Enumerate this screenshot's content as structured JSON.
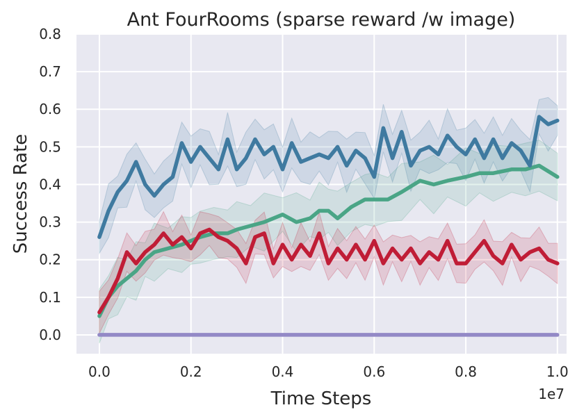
{
  "chart_data": {
    "type": "line",
    "title": "Ant FourRooms (sparse reward /w image)",
    "xlabel": "Time Steps",
    "ylabel": "Success Rate",
    "x_offset_label": "1e7",
    "xlim": [
      -0.05,
      1.02
    ],
    "ylim": [
      -0.05,
      0.8
    ],
    "xticks": [
      0.0,
      0.2,
      0.4,
      0.6,
      0.8,
      1.0
    ],
    "xtick_labels": [
      "0.0",
      "0.2",
      "0.4",
      "0.6",
      "0.8",
      "1.0"
    ],
    "yticks": [
      0.0,
      0.1,
      0.2,
      0.3,
      0.4,
      0.5,
      0.6,
      0.7,
      0.8
    ],
    "ytick_labels": [
      "0.0",
      "0.1",
      "0.2",
      "0.3",
      "0.4",
      "0.5",
      "0.6",
      "0.7",
      "0.8"
    ],
    "grid": true,
    "background_color": "#e8e8f1",
    "series": [
      {
        "color": "#9389c6",
        "x": [
          0.0,
          1.0
        ],
        "y": [
          0.0,
          0.0
        ],
        "band": 0.0
      },
      {
        "color": "#4aa586",
        "x": [
          0.0,
          0.02,
          0.04,
          0.06,
          0.08,
          0.1,
          0.12,
          0.15,
          0.18,
          0.2,
          0.22,
          0.25,
          0.28,
          0.3,
          0.33,
          0.36,
          0.4,
          0.43,
          0.46,
          0.48,
          0.5,
          0.52,
          0.55,
          0.58,
          0.6,
          0.63,
          0.66,
          0.7,
          0.73,
          0.76,
          0.8,
          0.83,
          0.86,
          0.9,
          0.93,
          0.96,
          1.0
        ],
        "y": [
          0.05,
          0.1,
          0.13,
          0.15,
          0.17,
          0.2,
          0.22,
          0.23,
          0.24,
          0.25,
          0.26,
          0.27,
          0.27,
          0.28,
          0.29,
          0.3,
          0.32,
          0.3,
          0.31,
          0.33,
          0.33,
          0.31,
          0.34,
          0.36,
          0.36,
          0.36,
          0.38,
          0.41,
          0.4,
          0.41,
          0.42,
          0.43,
          0.43,
          0.44,
          0.44,
          0.45,
          0.42
        ],
        "band": 0.06
      },
      {
        "color": "#c01d36",
        "x": [
          0.0,
          0.02,
          0.04,
          0.06,
          0.08,
          0.1,
          0.12,
          0.14,
          0.16,
          0.18,
          0.2,
          0.22,
          0.24,
          0.26,
          0.28,
          0.3,
          0.32,
          0.34,
          0.36,
          0.38,
          0.4,
          0.42,
          0.44,
          0.46,
          0.48,
          0.5,
          0.52,
          0.54,
          0.56,
          0.58,
          0.6,
          0.62,
          0.64,
          0.66,
          0.68,
          0.7,
          0.72,
          0.74,
          0.76,
          0.78,
          0.8,
          0.82,
          0.84,
          0.86,
          0.88,
          0.9,
          0.92,
          0.94,
          0.96,
          0.98,
          1.0
        ],
        "y": [
          0.06,
          0.1,
          0.15,
          0.22,
          0.19,
          0.22,
          0.24,
          0.27,
          0.24,
          0.26,
          0.23,
          0.27,
          0.28,
          0.26,
          0.25,
          0.23,
          0.19,
          0.26,
          0.27,
          0.19,
          0.24,
          0.2,
          0.24,
          0.21,
          0.27,
          0.19,
          0.23,
          0.2,
          0.24,
          0.2,
          0.25,
          0.19,
          0.23,
          0.2,
          0.23,
          0.19,
          0.22,
          0.2,
          0.25,
          0.19,
          0.19,
          0.22,
          0.25,
          0.21,
          0.19,
          0.24,
          0.2,
          0.22,
          0.23,
          0.2,
          0.19
        ],
        "band": 0.045
      },
      {
        "color": "#3f7aa0",
        "x": [
          0.0,
          0.02,
          0.04,
          0.06,
          0.08,
          0.1,
          0.12,
          0.14,
          0.16,
          0.18,
          0.2,
          0.22,
          0.24,
          0.26,
          0.28,
          0.3,
          0.32,
          0.34,
          0.36,
          0.38,
          0.4,
          0.42,
          0.44,
          0.46,
          0.48,
          0.5,
          0.52,
          0.54,
          0.56,
          0.58,
          0.6,
          0.62,
          0.64,
          0.66,
          0.68,
          0.7,
          0.72,
          0.74,
          0.76,
          0.78,
          0.8,
          0.82,
          0.84,
          0.86,
          0.88,
          0.9,
          0.92,
          0.94,
          0.96,
          0.98,
          1.0
        ],
        "y": [
          0.26,
          0.33,
          0.38,
          0.41,
          0.46,
          0.4,
          0.37,
          0.4,
          0.42,
          0.51,
          0.46,
          0.5,
          0.47,
          0.44,
          0.52,
          0.44,
          0.47,
          0.52,
          0.48,
          0.5,
          0.44,
          0.51,
          0.46,
          0.47,
          0.48,
          0.47,
          0.5,
          0.45,
          0.49,
          0.47,
          0.42,
          0.55,
          0.47,
          0.54,
          0.45,
          0.49,
          0.5,
          0.48,
          0.53,
          0.5,
          0.48,
          0.52,
          0.47,
          0.52,
          0.47,
          0.51,
          0.49,
          0.45,
          0.58,
          0.56,
          0.57
        ],
        "band": 0.055
      }
    ]
  }
}
